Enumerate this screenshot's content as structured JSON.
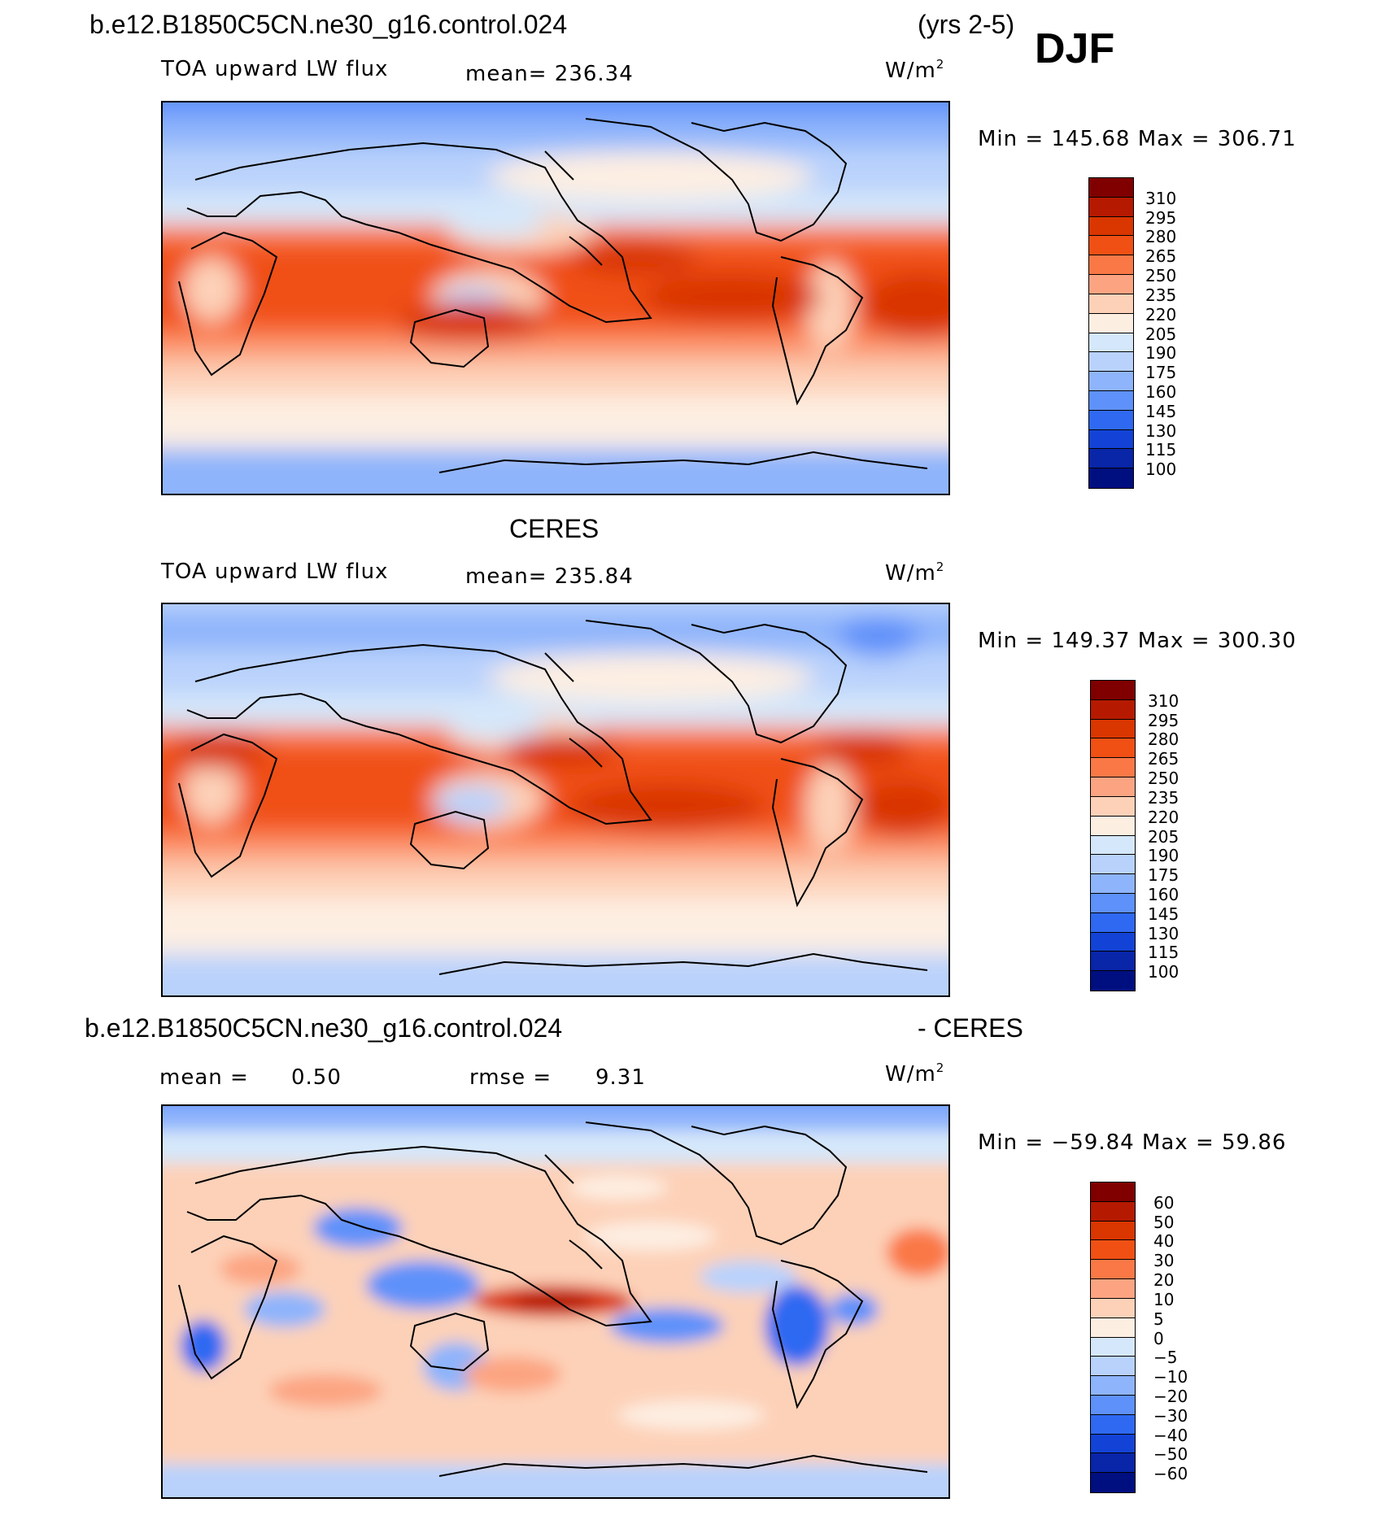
{
  "figure": {
    "case_name": "b.e12.B1850C5CN.ne30_g16.control.024",
    "years": "(yrs 2-5)",
    "season": "DJF",
    "diff_suffix": "- CERES"
  },
  "panels": [
    {
      "title": "",
      "variable": "TOA upward LW flux",
      "mean_text": "mean= 236.34",
      "units_base": "W/m",
      "units_exp": "2",
      "minmax": "Min  =  145.68  Max  =  306.71",
      "colorbar": {
        "labels": [
          "310",
          "295",
          "280",
          "265",
          "250",
          "235",
          "220",
          "205",
          "190",
          "175",
          "160",
          "145",
          "130",
          "115",
          "100"
        ],
        "colors": [
          "#800000",
          "#b51a00",
          "#d93600",
          "#f05014",
          "#fa7846",
          "#fca482",
          "#fdd1b8",
          "#fdeee2",
          "#d5e7fa",
          "#b9d2fc",
          "#8eb4fb",
          "#5e91fa",
          "#2f69f2",
          "#1343d6",
          "#0925a8",
          "#000f80"
        ]
      }
    },
    {
      "title": "CERES",
      "variable": "TOA upward LW flux",
      "mean_text": "mean= 235.84",
      "units_base": "W/m",
      "units_exp": "2",
      "minmax": "Min  =  149.37  Max  =  300.30",
      "colorbar": {
        "labels": [
          "310",
          "295",
          "280",
          "265",
          "250",
          "235",
          "220",
          "205",
          "190",
          "175",
          "160",
          "145",
          "130",
          "115",
          "100"
        ],
        "colors": [
          "#800000",
          "#b51a00",
          "#d93600",
          "#f05014",
          "#fa7846",
          "#fca482",
          "#fdd1b8",
          "#fdeee2",
          "#d5e7fa",
          "#b9d2fc",
          "#8eb4fb",
          "#5e91fa",
          "#2f69f2",
          "#1343d6",
          "#0925a8",
          "#000f80"
        ]
      }
    },
    {
      "title": "",
      "mean_label": "mean =",
      "mean_value": "0.50",
      "rmse_label": "rmse =",
      "rmse_value": "9.31",
      "units_base": "W/m",
      "units_exp": "2",
      "minmax": "Min  =  −59.84  Max  =    59.86",
      "colorbar": {
        "labels": [
          "60",
          "50",
          "40",
          "30",
          "20",
          "10",
          "5",
          "0",
          "−5",
          "−10",
          "−20",
          "−30",
          "−40",
          "−50",
          "−60"
        ],
        "colors": [
          "#800000",
          "#b51a00",
          "#d93600",
          "#f05014",
          "#fa7846",
          "#fca482",
          "#fdd1b8",
          "#fdeee2",
          "#d5e7fa",
          "#b9d2fc",
          "#8eb4fb",
          "#5e91fa",
          "#2f69f2",
          "#1343d6",
          "#0925a8",
          "#000f80"
        ]
      }
    }
  ]
}
